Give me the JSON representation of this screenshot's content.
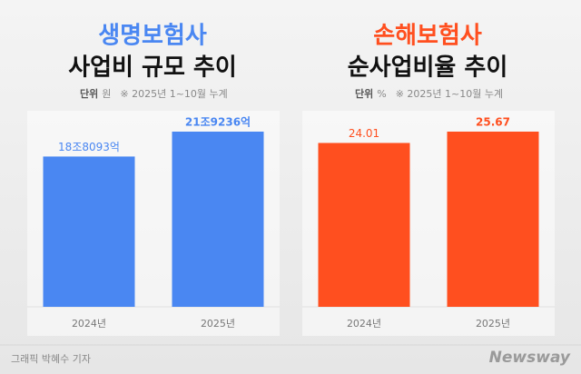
{
  "chart_data": [
    {
      "type": "bar",
      "title": "생명보험사",
      "subtitle": "사업비 규모 추이",
      "unit_label": "단위",
      "unit": "원",
      "note": "※ 2025년 1~10월 누계",
      "categories": [
        "2024년",
        "2025년"
      ],
      "values": [
        188093,
        219236
      ],
      "value_labels": [
        "18조8093억",
        "21조9236억"
      ],
      "color": "#4a87f2"
    },
    {
      "type": "bar",
      "title": "손해보험사",
      "subtitle": "순사업비율 추이",
      "unit_label": "단위",
      "unit": "%",
      "note": "※ 2025년 1~10월 누계",
      "categories": [
        "2024년",
        "2025년"
      ],
      "values": [
        24.01,
        25.67
      ],
      "color": "#ff4f1f"
    }
  ],
  "credit": "그래픽 박혜수 기자",
  "logo": "Newsway"
}
